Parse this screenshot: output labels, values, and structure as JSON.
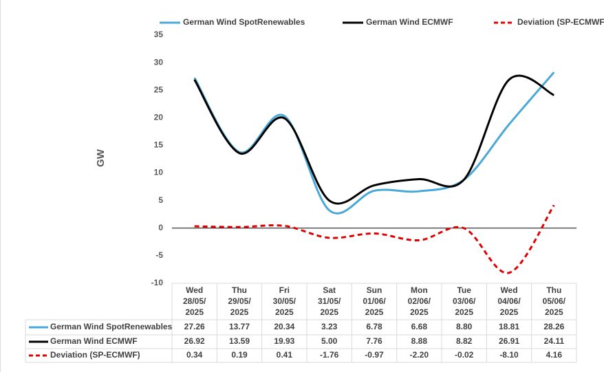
{
  "chart_data": {
    "type": "line",
    "y_label": "GW",
    "categories": [
      [
        "Wed",
        "28/05/",
        "2025"
      ],
      [
        "Thu",
        "29/05/",
        "2025"
      ],
      [
        "Fri",
        "30/05/",
        "2025"
      ],
      [
        "Sat",
        "31/05/",
        "2025"
      ],
      [
        "Sun",
        "01/06/",
        "2025"
      ],
      [
        "Mon",
        "02/06/",
        "2025"
      ],
      [
        "Tue",
        "03/06/",
        "2025"
      ],
      [
        "Wed",
        "04/06/",
        "2025"
      ],
      [
        "Thu",
        "05/06/",
        "2025"
      ]
    ],
    "series": [
      {
        "name": "German Wind SpotRenewables",
        "color": "#4aa8d8",
        "dashed": false,
        "values": [
          27.26,
          13.77,
          20.34,
          3.23,
          6.78,
          6.68,
          8.8,
          18.81,
          28.26
        ],
        "value_labels": [
          "27.26",
          "13.77",
          "20.34",
          "3.23",
          "6.78",
          "6.68",
          "8.80",
          "18.81",
          "28.26"
        ]
      },
      {
        "name": "German Wind ECMWF",
        "color": "#000000",
        "dashed": false,
        "values": [
          26.92,
          13.59,
          19.93,
          5,
          7.76,
          8.88,
          8.82,
          26.91,
          24.11
        ],
        "value_labels": [
          "26.92",
          "13.59",
          "19.93",
          "5.00",
          "7.76",
          "8.88",
          "8.82",
          "26.91",
          "24.11"
        ]
      },
      {
        "name": "Deviation (SP-ECMWF)",
        "color": "#e00000",
        "dashed": true,
        "values": [
          0.34,
          0.19,
          0.41,
          -1.76,
          -0.97,
          -2.2,
          -0.02,
          -8.1,
          4.16
        ],
        "value_labels": [
          "0.34",
          "0.19",
          "0.41",
          "-1.76",
          "-0.97",
          "-2.20",
          "-0.02",
          "-8.10",
          "4.16"
        ]
      }
    ],
    "ylim": [
      -10,
      35
    ],
    "yticks": [
      -10,
      -5,
      0,
      5,
      10,
      15,
      20,
      25,
      30,
      35
    ],
    "grid": false,
    "legend": "top",
    "smooth": true
  }
}
